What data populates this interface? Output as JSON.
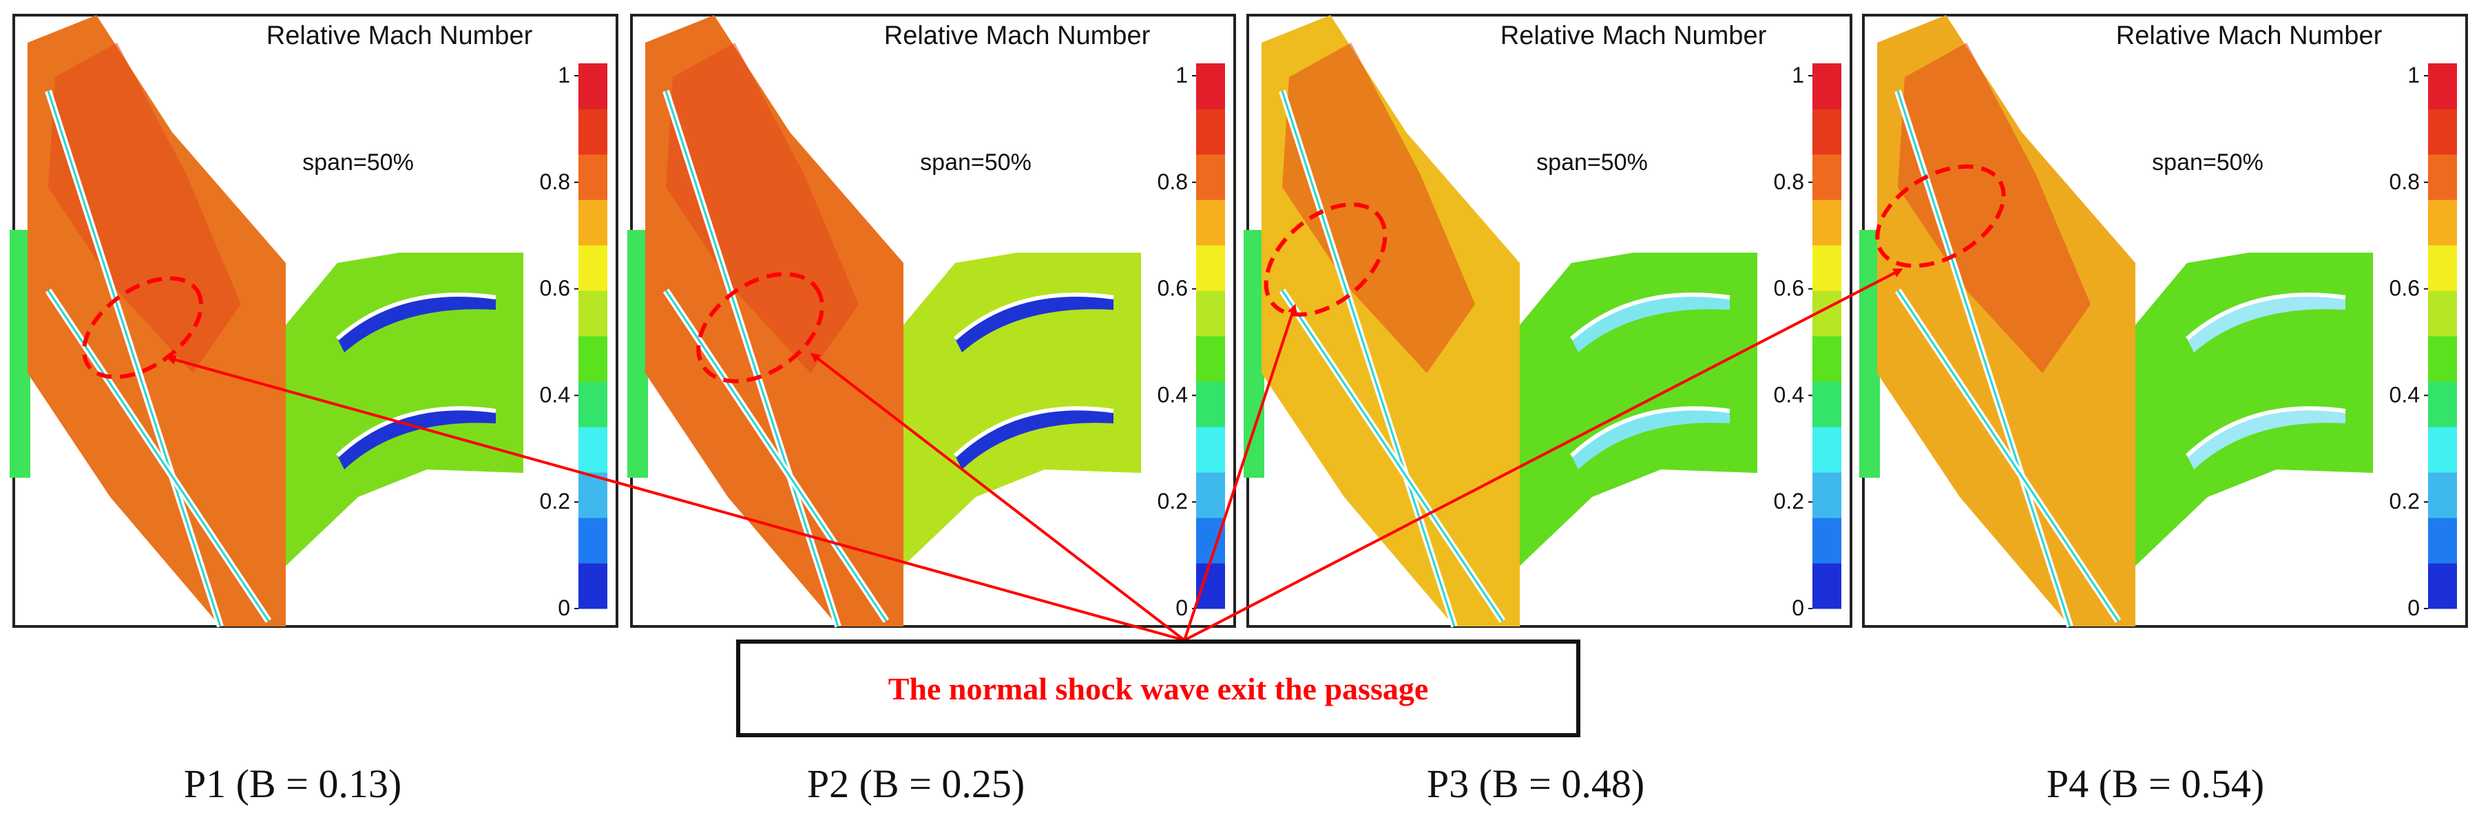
{
  "figure": {
    "colorbar_ticks": [
      "0",
      "0.2",
      "0.4",
      "0.6",
      "0.8",
      "1"
    ],
    "colors": {
      "annotation": "#ff0000",
      "frame": "#222222",
      "scale": [
        "#1b2fd6",
        "#1f7cf0",
        "#3fb8ee",
        "#41f0f0",
        "#33e36a",
        "#5ae21e",
        "#b6e624",
        "#f3ef1f",
        "#f7b01d",
        "#ef6a1e",
        "#e63a1a",
        "#e21e2a"
      ]
    },
    "panels": [
      {
        "id": "p1",
        "title": "Relative Mach Number",
        "span_label": "span=50%",
        "caption": "P1 (B = 0.13)",
        "front_color": "#e8741f",
        "back_color": "#7cdc1c",
        "wake_color": "#1e33d4"
      },
      {
        "id": "p2",
        "title": "Relative Mach Number",
        "span_label": "span=50%",
        "caption": "P2 (B = 0.25)",
        "front_color": "#e9701f",
        "back_color": "#b4e21f",
        "wake_color": "#1e33d4"
      },
      {
        "id": "p3",
        "title": "Relative Mach Number",
        "span_label": "span=50%",
        "caption": "P3 (B = 0.48)",
        "front_color": "#eebc1e",
        "back_color": "#62dc1e",
        "wake_color": "#7fe6f0"
      },
      {
        "id": "p4",
        "title": "Relative Mach Number",
        "span_label": "span=50%",
        "caption": "P4 (B = 0.54)",
        "front_color": "#eeaa1f",
        "back_color": "#62dc1e",
        "wake_color": "#9fe8f5"
      }
    ],
    "annotation": {
      "text": "The normal shock wave exit the passage"
    }
  }
}
